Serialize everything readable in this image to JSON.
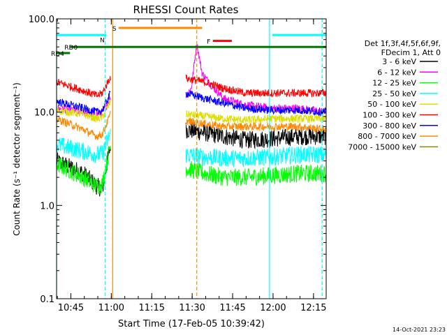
{
  "chart_data": {
    "type": "line",
    "title": "RHESSI Count Rates",
    "xlabel": "Start Time (17-Feb-05 10:39:42)",
    "ylabel": "Count Rate (s⁻¹ detector segment⁻¹)",
    "yscale": "log",
    "ylim": [
      0.1,
      100
    ],
    "xlim_minutes": [
      0,
      100
    ],
    "y_ticks": [
      {
        "value": 0.1,
        "label": "0.1"
      },
      {
        "value": 1,
        "label": "1.0"
      },
      {
        "value": 10,
        "label": "10.0"
      },
      {
        "value": 100,
        "label": "100.0"
      }
    ],
    "x_ticks": [
      {
        "minutes": 5.3,
        "label": "10:45"
      },
      {
        "minutes": 20.3,
        "label": "11:00"
      },
      {
        "minutes": 35.3,
        "label": "11:15"
      },
      {
        "minutes": 50.3,
        "label": "11:30"
      },
      {
        "minutes": 65.3,
        "label": "11:45"
      },
      {
        "minutes": 80.3,
        "label": "12:00"
      },
      {
        "minutes": 95.3,
        "label": "12:15"
      }
    ],
    "legend_header": [
      "Det 1f,3f,4f,5f,6f,9f,",
      "FDecim 1, Att 0"
    ],
    "series": [
      {
        "name": "3 - 6 keV",
        "color": "#000000",
        "pre": [
          [
            0,
            3.0
          ],
          [
            10,
            2.2
          ],
          [
            15,
            1.6
          ],
          [
            17,
            1.5
          ],
          [
            20,
            4.5
          ]
        ],
        "post": [
          [
            48,
            6.5
          ],
          [
            55,
            6.0
          ],
          [
            62,
            5.5
          ],
          [
            70,
            5.0
          ],
          [
            80,
            5.2
          ],
          [
            90,
            5.5
          ],
          [
            100,
            5.5
          ]
        ]
      },
      {
        "name": "6 - 12 keV",
        "color": "#ff00ff",
        "pre": [
          [
            0,
            11
          ],
          [
            10,
            10
          ],
          [
            15,
            9.5
          ],
          [
            17,
            10
          ],
          [
            20,
            14
          ]
        ],
        "post": [
          [
            48,
            15
          ],
          [
            50,
            18
          ],
          [
            52,
            55
          ],
          [
            54,
            26
          ],
          [
            57,
            20
          ],
          [
            62,
            14
          ],
          [
            70,
            12
          ],
          [
            80,
            11
          ],
          [
            90,
            11
          ],
          [
            100,
            10
          ]
        ]
      },
      {
        "name": "12 - 25 keV",
        "color": "#00ff00",
        "pre": [
          [
            0,
            2.8
          ],
          [
            10,
            2.0
          ],
          [
            15,
            1.6
          ],
          [
            17,
            1.7
          ],
          [
            20,
            4.5
          ]
        ],
        "post": [
          [
            48,
            2.5
          ],
          [
            55,
            2.2
          ],
          [
            62,
            2.0
          ],
          [
            70,
            2.0
          ],
          [
            80,
            2.1
          ],
          [
            90,
            2.2
          ],
          [
            100,
            2.2
          ]
        ]
      },
      {
        "name": "25 - 50 keV",
        "color": "#00ffff",
        "pre": [
          [
            0,
            4.5
          ],
          [
            10,
            3.8
          ],
          [
            15,
            3.5
          ],
          [
            17,
            3.6
          ],
          [
            20,
            6.0
          ]
        ],
        "post": [
          [
            48,
            3.5
          ],
          [
            55,
            3.3
          ],
          [
            62,
            3.2
          ],
          [
            70,
            3.2
          ],
          [
            80,
            3.3
          ],
          [
            90,
            3.5
          ],
          [
            100,
            3.5
          ]
        ]
      },
      {
        "name": "50 - 100 keV",
        "color": "#dddd00",
        "pre": [
          [
            0,
            10.5
          ],
          [
            10,
            9.5
          ],
          [
            15,
            8.5
          ],
          [
            17,
            8.8
          ],
          [
            20,
            13
          ]
        ],
        "post": [
          [
            48,
            9.5
          ],
          [
            55,
            9.0
          ],
          [
            62,
            8.5
          ],
          [
            70,
            8.2
          ],
          [
            80,
            8.5
          ],
          [
            90,
            8.5
          ],
          [
            100,
            8.5
          ]
        ]
      },
      {
        "name": "100 - 300 keV",
        "color": "#ff0000",
        "pre": [
          [
            0,
            21
          ],
          [
            10,
            17
          ],
          [
            15,
            15
          ],
          [
            17,
            16
          ],
          [
            20,
            24
          ]
        ],
        "post": [
          [
            48,
            23
          ],
          [
            55,
            21
          ],
          [
            62,
            18
          ],
          [
            70,
            16
          ],
          [
            80,
            16
          ],
          [
            90,
            16
          ],
          [
            100,
            16
          ]
        ]
      },
      {
        "name": "300 - 800 keV",
        "color": "#0000ff",
        "pre": [
          [
            0,
            13
          ],
          [
            10,
            11
          ],
          [
            15,
            10
          ],
          [
            17,
            10.5
          ],
          [
            20,
            16
          ]
        ],
        "post": [
          [
            48,
            16
          ],
          [
            55,
            14
          ],
          [
            62,
            12.5
          ],
          [
            70,
            11
          ],
          [
            80,
            10.5
          ],
          [
            90,
            10.5
          ],
          [
            100,
            10
          ]
        ]
      },
      {
        "name": "800 - 7000 keV",
        "color": "#ff8800",
        "pre": [
          [
            0,
            8.5
          ],
          [
            10,
            6.5
          ],
          [
            15,
            5.5
          ],
          [
            17,
            5.8
          ],
          [
            20,
            9.5
          ]
        ],
        "post": [
          [
            48,
            8.0
          ],
          [
            55,
            7.5
          ],
          [
            62,
            7.0
          ],
          [
            70,
            7.0
          ],
          [
            80,
            7.0
          ],
          [
            90,
            7.0
          ],
          [
            100,
            6.5
          ]
        ]
      },
      {
        "name": "7000 - 15000 keV",
        "color": "#888800",
        "pre": [],
        "post": []
      }
    ],
    "vertical_markers": [
      {
        "minutes": 0,
        "color": "#00ffff",
        "style": "solid"
      },
      {
        "minutes": 18.0,
        "color": "#00ffff",
        "style": "dashed"
      },
      {
        "minutes": 20.8,
        "color": "#ff8800",
        "style": "solid"
      },
      {
        "minutes": 52.0,
        "color": "#ff8800",
        "style": "dashed"
      },
      {
        "minutes": 79.0,
        "color": "#00ffff",
        "style": "solid"
      },
      {
        "minutes": 98.5,
        "color": "#00ffff",
        "style": "dashed"
      }
    ],
    "flag_bars": [
      {
        "label": "",
        "color": "#00ffff",
        "y": 67,
        "start_min": 0,
        "end_min": 18.5
      },
      {
        "label": "",
        "color": "#00ffff",
        "y": 67,
        "start_min": 80,
        "end_min": 100
      },
      {
        "label": "S",
        "color": "#ff8800",
        "y": 80,
        "start_min": 23,
        "end_min": 54
      },
      {
        "label": "N",
        "color": "#00ffff",
        "y": 60,
        "start_min": 18.5,
        "end_min": 18.5
      },
      {
        "label": "F",
        "color": "#ff0000",
        "y": 58,
        "start_min": 58,
        "end_min": 65
      },
      {
        "label": "RD0",
        "color": "#007700",
        "y": 50,
        "start_min": 5,
        "end_min": 100
      },
      {
        "label": "RD4",
        "color": "#007700",
        "y": 43,
        "start_min": 0,
        "end_min": 5
      }
    ]
  },
  "footer": {
    "timestamp": "14-Oct-2021 23:23"
  }
}
